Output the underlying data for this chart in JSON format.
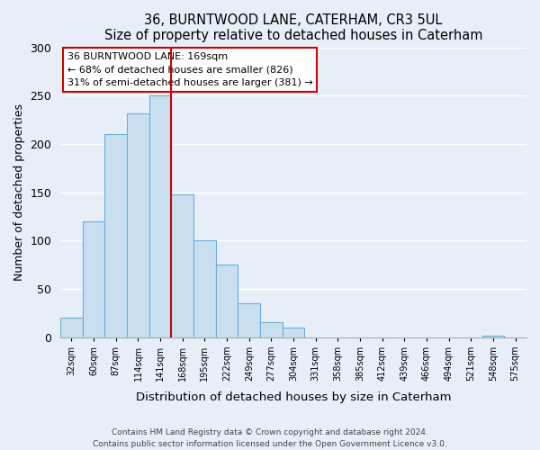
{
  "title": "36, BURNTWOOD LANE, CATERHAM, CR3 5UL",
  "subtitle": "Size of property relative to detached houses in Caterham",
  "xlabel": "Distribution of detached houses by size in Caterham",
  "ylabel": "Number of detached properties",
  "bar_labels": [
    "32sqm",
    "60sqm",
    "87sqm",
    "114sqm",
    "141sqm",
    "168sqm",
    "195sqm",
    "222sqm",
    "249sqm",
    "277sqm",
    "304sqm",
    "331sqm",
    "358sqm",
    "385sqm",
    "412sqm",
    "439sqm",
    "466sqm",
    "494sqm",
    "521sqm",
    "548sqm",
    "575sqm"
  ],
  "bar_heights": [
    20,
    120,
    210,
    232,
    250,
    148,
    100,
    75,
    35,
    16,
    10,
    0,
    0,
    0,
    0,
    0,
    0,
    0,
    0,
    2,
    0
  ],
  "bar_color": "#c9dff0",
  "bar_edge_color": "#6aaed6",
  "highlight_bar_index": 5,
  "highlight_line_color": "#cc0000",
  "ylim": [
    0,
    300
  ],
  "yticks": [
    0,
    50,
    100,
    150,
    200,
    250,
    300
  ],
  "annotation_title": "36 BURNTWOOD LANE: 169sqm",
  "annotation_line1": "← 68% of detached houses are smaller (826)",
  "annotation_line2": "31% of semi-detached houses are larger (381) →",
  "annotation_box_color": "#ffffff",
  "annotation_box_edge": "#cc0000",
  "footer_line1": "Contains HM Land Registry data © Crown copyright and database right 2024.",
  "footer_line2": "Contains public sector information licensed under the Open Government Licence v3.0.",
  "background_color": "#e8eef8",
  "plot_background_color": "#e8eef8",
  "grid_color": "#ffffff"
}
